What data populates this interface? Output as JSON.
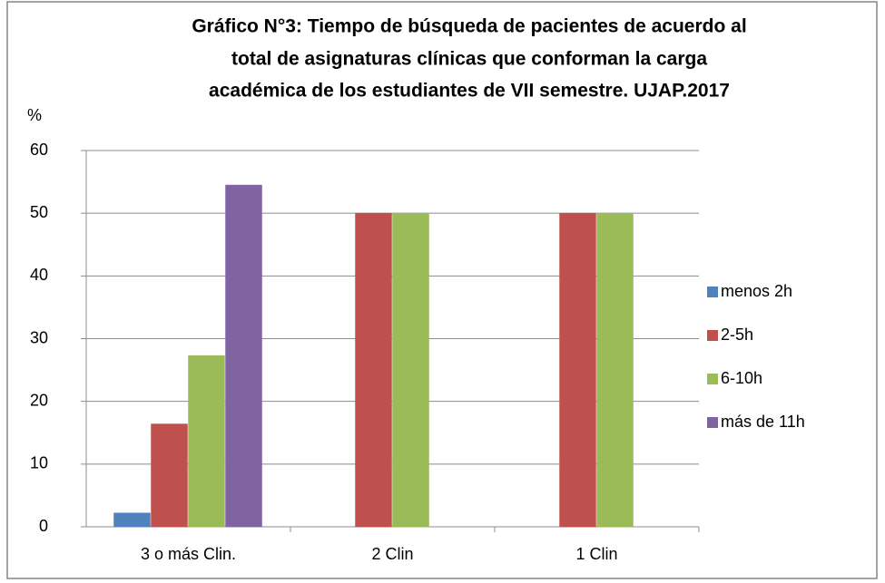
{
  "chart_data": {
    "type": "bar",
    "title": [
      "Gráfico N°3:  Tiempo de búsqueda de pacientes de acuerdo al",
      "total de asignaturas clínicas que conforman la carga",
      "académica  de los estudiantes de VII semestre. UJAP.2017"
    ],
    "y_label": "%",
    "categories": [
      "3 o más Clin.",
      "2 Clin",
      "1 Clin"
    ],
    "series": [
      {
        "name": "menos 2h",
        "color": "#4f81bd",
        "values": [
          2.2,
          0,
          0
        ]
      },
      {
        "name": "2-5h",
        "color": "#c0504d",
        "values": [
          16.4,
          50,
          50
        ]
      },
      {
        "name": "6-10h",
        "color": "#9bbb59",
        "values": [
          27.3,
          50,
          50
        ]
      },
      {
        "name": "más de 11h",
        "color": "#8064a2",
        "values": [
          54.5,
          0,
          0
        ]
      }
    ],
    "ylim": [
      0,
      60
    ],
    "yticks": [
      0,
      10,
      20,
      30,
      40,
      50,
      60
    ],
    "grid": true,
    "legend": "right"
  }
}
